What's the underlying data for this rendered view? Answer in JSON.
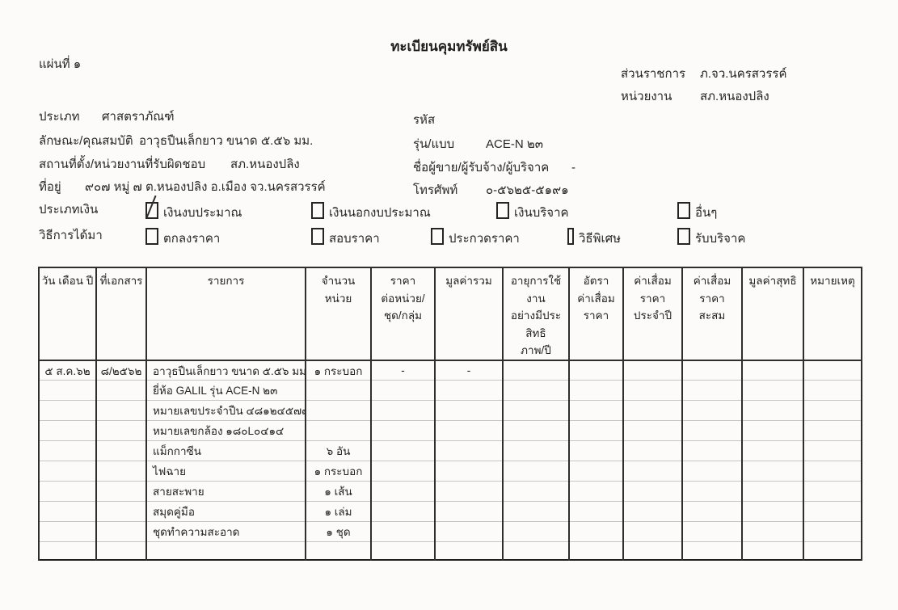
{
  "document": {
    "title": "ทะเบียนคุมทรัพย์สิน",
    "sheet_label": "แผ่นที่ ๑",
    "agency_label": "ส่วนราชการ",
    "agency_value": "ภ.จว.นครสวรรค์",
    "unit_label": "หน่วยงาน",
    "unit_value": "สภ.หนองปลิง"
  },
  "fields": {
    "type_label": "ประเภท",
    "type_value": "ศาสตราภัณฑ์",
    "code_label": "รหัส",
    "spec_label": "ลักษณะ/คุณสมบัติ",
    "spec_value": "อาวุธปืนเล็กยาว ขนาด ๕.๕๖ มม.",
    "model_label": "รุ่น/แบบ",
    "model_value": "ACE-N ๒๓",
    "location_label": "สถานที่ตั้ง/หน่วยงานที่รับผิดชอบ",
    "location_value": "สภ.หนองปลิง",
    "seller_label": "ชื่อผู้ขาย/ผู้รับจ้าง/ผู้บริจาค",
    "seller_value": "-",
    "address_label": "ที่อยู่",
    "address_value": "๙๐๗ หมู่ ๗  ต.หนองปลิง  อ.เมือง จว.นครสวรรค์",
    "phone_label": "โทรศัพท์",
    "phone_value": "๐-๕๖๒๕-๕๑๙๑"
  },
  "money_type": {
    "label": "ประเภทเงิน",
    "options": [
      {
        "label": "เงินงบประมาณ",
        "checked": true
      },
      {
        "label": "เงินนอกงบประมาณ",
        "checked": false
      },
      {
        "label": "เงินบริจาค",
        "checked": false
      },
      {
        "label": "อื่นๆ",
        "checked": false
      }
    ]
  },
  "acquisition": {
    "label": "วิธีการได้มา",
    "options": [
      {
        "label": "ตกลงราคา",
        "checked": false
      },
      {
        "label": "สอบราคา",
        "checked": false
      },
      {
        "label": "ประกวดราคา",
        "checked": false
      },
      {
        "label": "วิธีพิเศษ",
        "checked": false
      },
      {
        "label": "รับบริจาค",
        "checked": false
      }
    ]
  },
  "table": {
    "headers": [
      "วัน เดือน ปี",
      "ที่เอกสาร",
      "รายการ",
      "จำนวน\nหน่วย",
      "ราคา\nต่อหน่วย/\nชุด/กลุ่ม",
      "มูลค่ารวม",
      "อายุการใช้งาน\nอย่างมีประสิทธิ\nภาพ/ปี",
      "อัตรา\nค่าเสื่อม\nราคา",
      "ค่าเสื่อมราคา\nประจำปี",
      "ค่าเสื่อมราคา\nสะสม",
      "มูลค่าสุทธิ",
      "หมายเหตุ"
    ],
    "rows": [
      [
        "๕ ส.ค.๖๒",
        "๘/๒๕๖๒",
        "อาวุธปืนเล็กยาว ขนาด ๕.๕๖ มม.",
        "๑ กระบอก",
        "-",
        "-",
        "",
        "",
        "",
        "",
        "",
        ""
      ],
      [
        "",
        "",
        "ยี่ห้อ GALIL รุ่น ACE-N ๒๓",
        "",
        "",
        "",
        "",
        "",
        "",
        "",
        "",
        ""
      ],
      [
        "",
        "",
        "หมายเลขประจำปืน  ๔๘๑๒๔๕๗๗",
        "",
        "",
        "",
        "",
        "",
        "",
        "",
        "",
        ""
      ],
      [
        "",
        "",
        "หมายเลขกล้อง ๑๘๐L๐๔๑๔",
        "",
        "",
        "",
        "",
        "",
        "",
        "",
        "",
        ""
      ],
      [
        "",
        "",
        "แม็กกาซีน",
        "๖ อัน",
        "",
        "",
        "",
        "",
        "",
        "",
        "",
        ""
      ],
      [
        "",
        "",
        "ไฟฉาย",
        "๑ กระบอก",
        "",
        "",
        "",
        "",
        "",
        "",
        "",
        ""
      ],
      [
        "",
        "",
        "สายสะพาย",
        "๑ เส้น",
        "",
        "",
        "",
        "",
        "",
        "",
        "",
        ""
      ],
      [
        "",
        "",
        "สมุดคู่มือ",
        "๑ เล่ม",
        "",
        "",
        "",
        "",
        "",
        "",
        "",
        ""
      ],
      [
        "",
        "",
        "ชุดทำความสะอาด",
        "๑ ชุด",
        "",
        "",
        "",
        "",
        "",
        "",
        "",
        ""
      ],
      [
        "",
        "",
        "",
        "",
        "",
        "",
        "",
        "",
        "",
        "",
        "",
        ""
      ]
    ]
  }
}
